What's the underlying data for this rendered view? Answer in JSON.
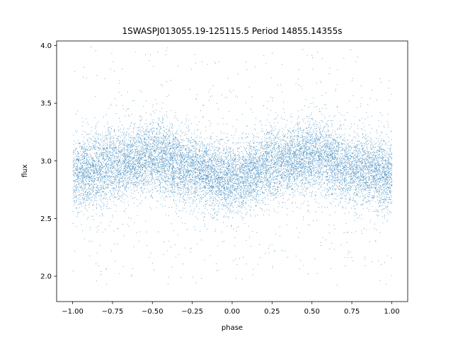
{
  "chart_data": {
    "type": "scatter",
    "title": "1SWASPJ013055.19-125115.5 Period 14855.14355s",
    "xlabel": "phase",
    "ylabel": "flux",
    "xlim": [
      -1.1,
      1.1
    ],
    "ylim": [
      1.78,
      4.04
    ],
    "x_ticks": [
      -1.0,
      -0.75,
      -0.5,
      -0.25,
      0.0,
      0.25,
      0.5,
      0.75,
      1.0
    ],
    "x_tick_labels": [
      "−1.00",
      "−0.75",
      "−0.50",
      "−0.25",
      "0.00",
      "0.25",
      "0.50",
      "0.75",
      "1.00"
    ],
    "y_ticks": [
      2.0,
      2.5,
      3.0,
      3.5,
      4.0
    ],
    "y_tick_labels": [
      "2.0",
      "2.5",
      "3.0",
      "3.5",
      "4.0"
    ],
    "grid": false,
    "legend": "none",
    "marker_color": "#1f77b4",
    "series": [
      {
        "phase_range": [
          -1.0,
          1.0
        ],
        "profile": {
          "phase": [
            -1.0,
            -0.75,
            -0.5,
            -0.25,
            0.0,
            0.25,
            0.5,
            0.75,
            1.0
          ],
          "mean_flux": [
            2.88,
            2.96,
            3.04,
            2.93,
            2.85,
            2.97,
            3.04,
            2.94,
            2.87
          ]
        },
        "core_spread": 0.15,
        "flux_range": [
          1.87,
          4.0
        ]
      }
    ]
  }
}
